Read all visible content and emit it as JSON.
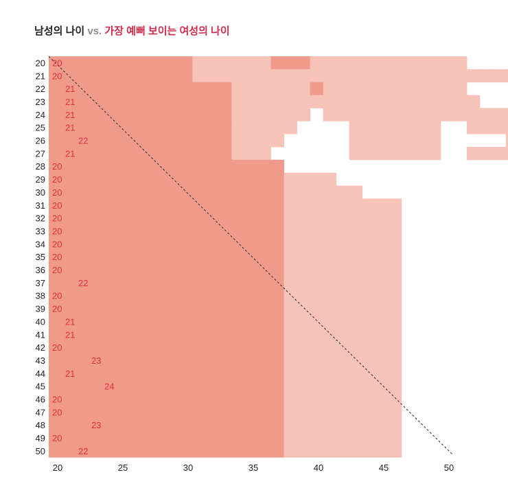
{
  "title": {
    "part1": "남성의 나이",
    "part2": "vs.",
    "part3": "가장 예뻐 보이는 여성의 나이"
  },
  "colors": {
    "dark": "#f09a8c",
    "light": "#f7c2b8",
    "label": "#e03040",
    "diagonal": "#333333"
  },
  "chart_data": {
    "type": "heatmap",
    "title": "남성의 나이 vs. 가장 예뻐 보이는 여성의 나이",
    "y_ages": [
      20,
      21,
      22,
      23,
      24,
      25,
      26,
      27,
      28,
      29,
      30,
      31,
      32,
      33,
      34,
      35,
      36,
      37,
      38,
      39,
      40,
      41,
      42,
      43,
      44,
      45,
      46,
      47,
      48,
      49,
      50
    ],
    "x_ages": [
      20,
      21,
      22,
      23,
      24,
      25,
      26,
      27,
      28,
      29,
      30,
      31,
      32,
      33,
      34,
      35,
      36,
      37,
      38,
      39,
      40,
      41,
      42,
      43,
      44,
      45,
      46,
      47,
      48,
      49,
      50
    ],
    "x_ticks": [
      "20",
      "25",
      "30",
      "35",
      "40",
      "45",
      "50"
    ],
    "x_range": [
      20,
      50
    ],
    "y_range": [
      20,
      50
    ],
    "diagonal": "x = y",
    "mode_ages": [
      20,
      20,
      21,
      21,
      21,
      21,
      22,
      21,
      20,
      20,
      20,
      20,
      20,
      20,
      20,
      20,
      20,
      22,
      20,
      20,
      21,
      21,
      20,
      23,
      21,
      24,
      20,
      20,
      23,
      20,
      22
    ],
    "rows": [
      "22222222222111111222111111111111000001000000000000",
      "22222222222111111111111111111111111111000000000000",
      "22222222222222111111211111111111000002100000000000",
      "22222222222222111111111111111111100002100000000000",
      "22222222222222111111011111111111111112010000000000",
      "22222222222222111110000111111100111112000000000000",
      "22222222222222111100000111111100000112011000000000",
      "22222222222222111000000111111100111111100000000000",
      "22222222222222222200000000000000000000000000000000",
      "22222222222222222211110000000000000000000000000000",
      "22222222222222222211111100000000000000000000000000",
      "22222222222222222211111111100000000000000000000000",
      "22222222222222222211111111100000000000000000000000",
      "22222222222222222211111111100000000000000000000000",
      "22222222222222222211111111100000000000000000000000",
      "22222222222222222211111111100000000000000000000000",
      "22222222222222222211111111100000000000000000000000",
      "22222222222222222211111111100000000000000000000000",
      "22222222222222222211111111100000000000000000000000",
      "22222222222222222211111111100000000000000000000000",
      "22222222222222222211111111100000000000000000000000",
      "22222222222222222211111111100000000000000000000000",
      "22222222222222222211111111100000000000000000000000",
      "22222222222222222211111111100000000000000000000000",
      "22222222222222222211111111100000000000000000000000",
      "22222222222222222211111111100000000000000000000000",
      "22222222222222222211111111100000000000000000000000",
      "22222222222222222211111111100000000000000000000000",
      "22222222222222222211111111100000000000000000000000",
      "22222222222222222211111111100000000000000000000000",
      "22222222222222222211111111100000000000000000000000"
    ]
  }
}
